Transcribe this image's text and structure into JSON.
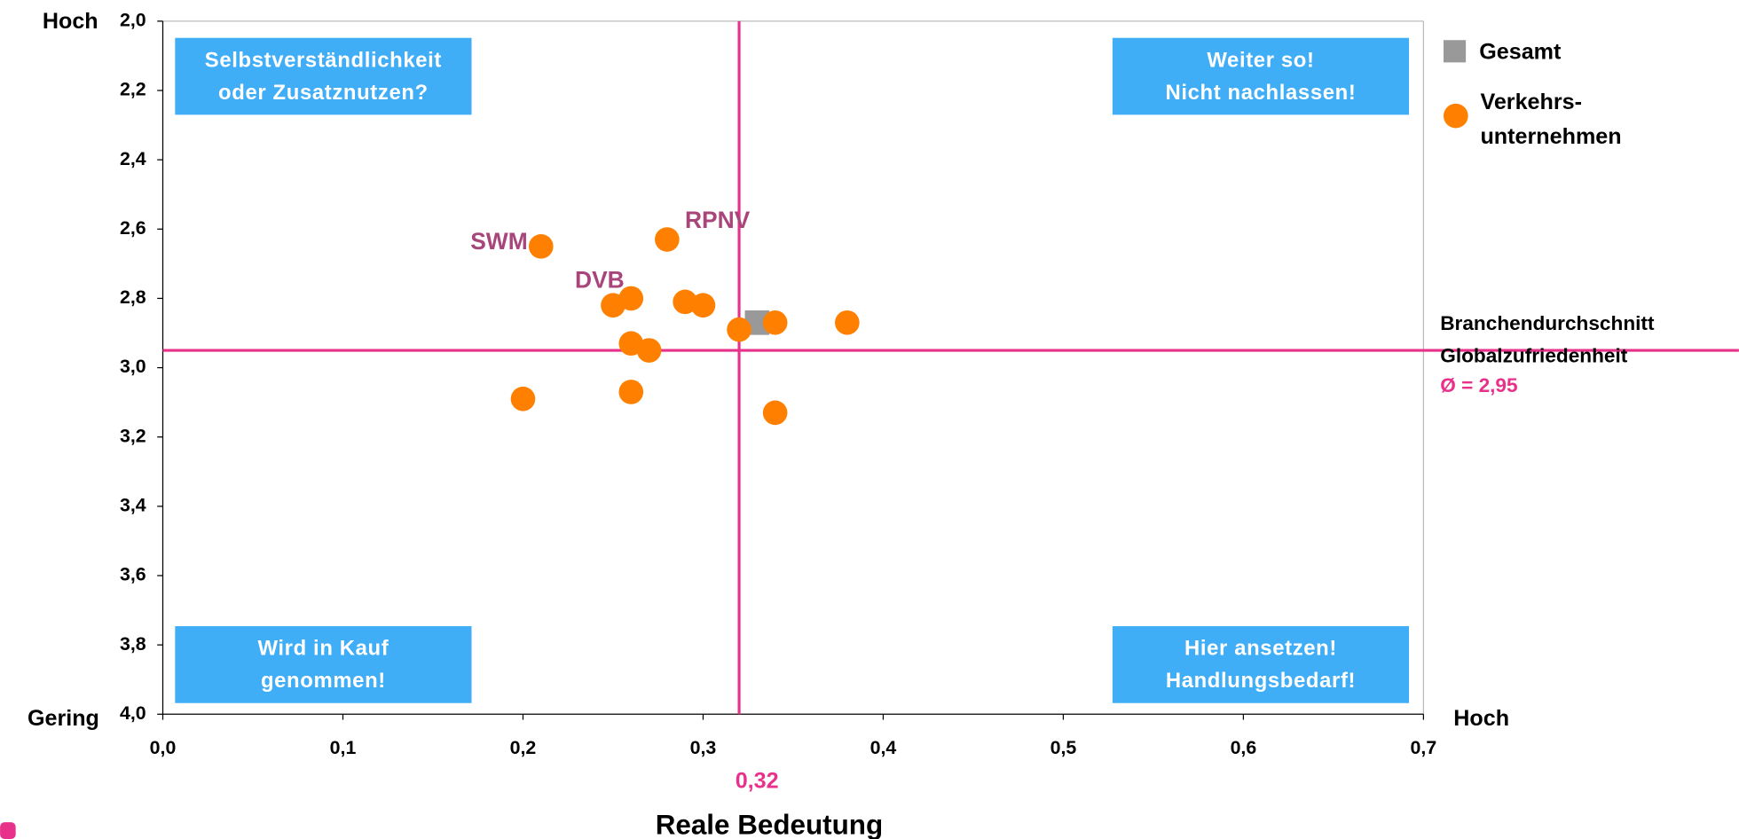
{
  "chart_data": {
    "type": "scatter",
    "x_label": "Reale Bedeutung",
    "y_high_label": "Hoch",
    "y_low_label": "Gering",
    "x_high_label": "Hoch",
    "xlim": [
      0,
      0.7
    ],
    "xticks": [
      {
        "value": 0,
        "label": "0,0"
      },
      {
        "value": 0.1,
        "label": "0,1"
      },
      {
        "value": 0.2,
        "label": "0,2"
      },
      {
        "value": 0.3,
        "label": "0,3"
      },
      {
        "value": 0.4,
        "label": "0,4"
      },
      {
        "value": 0.5,
        "label": "0,5"
      },
      {
        "value": 0.6,
        "label": "0,6"
      },
      {
        "value": 0.7,
        "label": "0,7"
      }
    ],
    "ylim": [
      2.0,
      4.0
    ],
    "y_reversed": true,
    "yticks": [
      {
        "value": 2.0,
        "label": "2,0"
      },
      {
        "value": 2.2,
        "label": "2,2"
      },
      {
        "value": 2.4,
        "label": "2,4"
      },
      {
        "value": 2.6,
        "label": "2,6"
      },
      {
        "value": 2.8,
        "label": "2,8"
      },
      {
        "value": 3.0,
        "label": "3,0"
      },
      {
        "value": 3.2,
        "label": "3,2"
      },
      {
        "value": 3.4,
        "label": "3,4"
      },
      {
        "value": 3.6,
        "label": "3,6"
      },
      {
        "value": 3.8,
        "label": "3,8"
      },
      {
        "value": 4.0,
        "label": "4,0"
      }
    ],
    "series": [
      {
        "name": "Gesamt",
        "color": "#999999",
        "marker": "square",
        "x": [
          0.33
        ],
        "values": [
          2.87
        ]
      },
      {
        "name": "Verkehrs-\nunternehmen",
        "color": "#ff8000",
        "marker": "circle",
        "x": [
          0.21,
          0.28,
          0.26,
          0.25,
          0.29,
          0.3,
          0.32,
          0.34,
          0.38,
          0.26,
          0.27,
          0.2,
          0.26,
          0.34
        ],
        "values": [
          2.65,
          2.63,
          2.8,
          2.82,
          2.81,
          2.82,
          2.89,
          2.87,
          2.87,
          2.93,
          2.95,
          3.09,
          3.07,
          3.13
        ],
        "labels": [
          "SWM",
          "RPNV",
          "DVB",
          null,
          null,
          null,
          null,
          null,
          null,
          null,
          null,
          null,
          null,
          null
        ],
        "label_color": "#a8457a"
      }
    ],
    "reference_lines": [
      {
        "axis": "x",
        "value": 0.32,
        "label": "0,32",
        "color": "#e8318b"
      },
      {
        "axis": "y",
        "value": 2.95,
        "label": "Ø = 2,95",
        "title": "Branchendurchschnitt\nGlobalzufriedenheit",
        "color": "#e8318b"
      }
    ],
    "quadrants": {
      "color": "#40adf7",
      "top_left": "Selbstverständlichkeit\noder Zusatznutzen?",
      "top_right": "Weiter so!\nNicht nachlassen!",
      "bottom_left": "Wird in Kauf\ngenommen!",
      "bottom_right": "Hier ansetzen!\nHandlungsbedarf!"
    }
  }
}
